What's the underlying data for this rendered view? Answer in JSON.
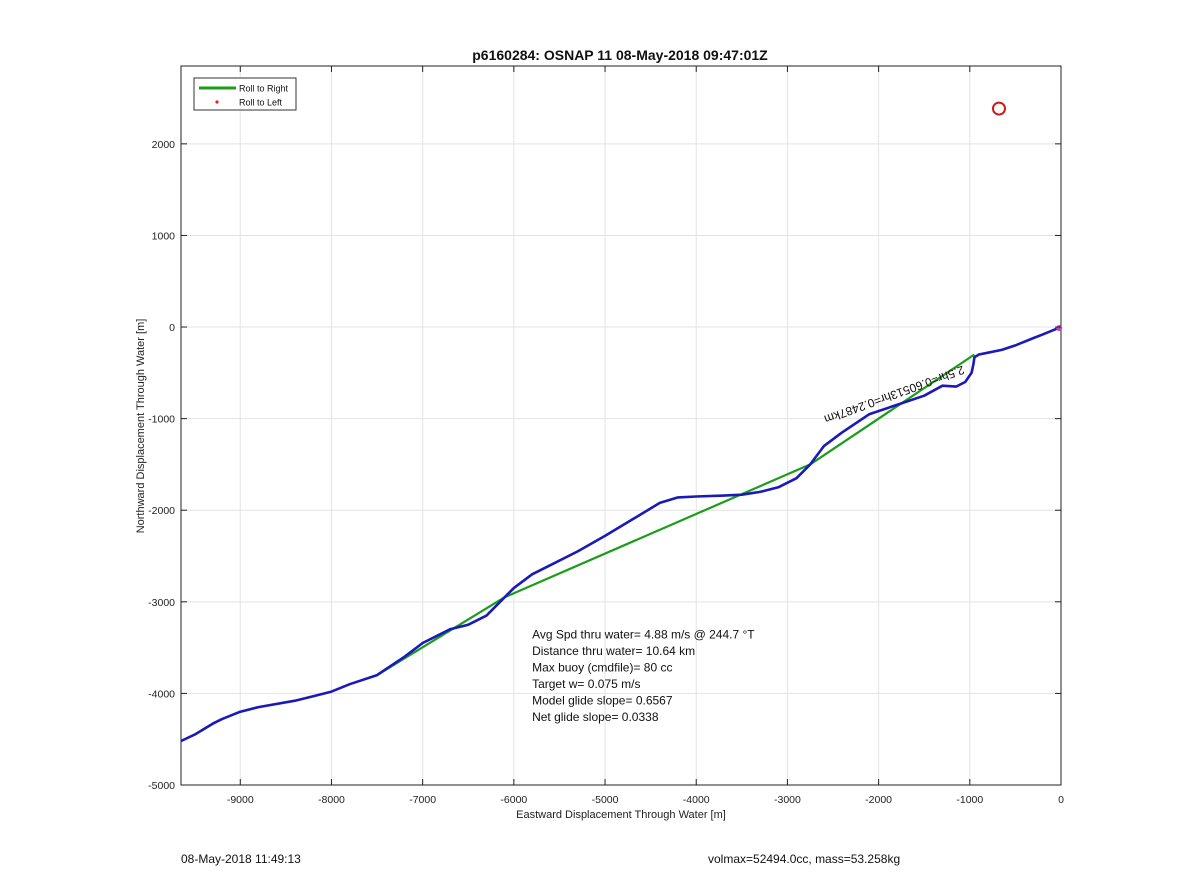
{
  "chart_data": {
    "type": "line",
    "title": "p6160284: OSNAP 11 08-May-2018 09:47:01Z",
    "xlabel": "Eastward Displacement Through Water [m]",
    "ylabel": "Northward Displacement Through Water [m]",
    "xlim": [
      -9650,
      0
    ],
    "ylim": [
      -5000,
      2850
    ],
    "xticks": [
      -9000,
      -8000,
      -7000,
      -6000,
      -5000,
      -4000,
      -3000,
      -2000,
      -1000,
      0
    ],
    "yticks": [
      -5000,
      -4000,
      -3000,
      -2000,
      -1000,
      0,
      1000,
      2000
    ],
    "grid": true,
    "legend_position": "top-left",
    "legend": [
      {
        "label": "Roll to Right",
        "color": "#1a9e1a",
        "style": "line"
      },
      {
        "label": "Roll to Left",
        "color": "#e02020",
        "style": "dot"
      }
    ],
    "series": [
      {
        "color": "#1a1ab8",
        "x": [
          0,
          -100,
          -200,
          -300,
          -400,
          -500,
          -650,
          -800,
          -900,
          -950,
          -960,
          -980,
          -1050,
          -1150,
          -1300,
          -1500,
          -1800,
          -2100,
          -2400,
          -2600,
          -2750,
          -2900,
          -3100,
          -3300,
          -3500,
          -3700,
          -4000,
          -4200,
          -4400,
          -4700,
          -5000,
          -5300,
          -5600,
          -5800,
          -6000,
          -6100,
          -6300,
          -6500,
          -6700,
          -7000,
          -7200,
          -7500,
          -7800,
          -8000,
          -8200,
          -8400,
          -8800,
          -9000,
          -9200,
          -9300,
          -9500,
          -9650
        ],
        "y": [
          0,
          -40,
          -80,
          -120,
          -160,
          -200,
          -250,
          -280,
          -300,
          -330,
          -400,
          -500,
          -600,
          -650,
          -640,
          -750,
          -850,
          -950,
          -1150,
          -1300,
          -1500,
          -1650,
          -1750,
          -1800,
          -1830,
          -1840,
          -1850,
          -1860,
          -1920,
          -2100,
          -2280,
          -2450,
          -2600,
          -2700,
          -2850,
          -2950,
          -3150,
          -3250,
          -3300,
          -3450,
          -3600,
          -3800,
          -3900,
          -3980,
          -4030,
          -4080,
          -4150,
          -4200,
          -4280,
          -4330,
          -4450,
          -4520
        ]
      },
      {
        "color": "#1a9e1a",
        "x": [
          -950,
          -2750,
          -6100,
          -7500
        ],
        "y": [
          -300,
          -1500,
          -2950,
          -3800
        ]
      }
    ],
    "markers": [
      {
        "type": "circle",
        "color": "#d01818",
        "x": -680,
        "y": 2385
      },
      {
        "type": "point",
        "color": "#c040c0",
        "x": -20,
        "y": -10
      }
    ],
    "annotations": [
      {
        "text": "2.5hr=0.60513hr=0.2487km",
        "x": -1080,
        "y": -420,
        "rotation": 160
      }
    ],
    "info_box": {
      "x": -5800,
      "y_top": -3400,
      "lines": [
        "Avg Spd thru water=  4.88 m/s @ 244.7 °T",
        "Distance thru water= 10.64 km",
        "Max buoy (cmdfile)= 80 cc",
        "Target w= 0.075 m/s",
        "Model glide slope= 0.6567",
        "Net glide slope= 0.0338"
      ]
    }
  },
  "footer": {
    "left": "08-May-2018 11:49:13",
    "right": "volmax=52494.0cc, mass=53.258kg"
  }
}
